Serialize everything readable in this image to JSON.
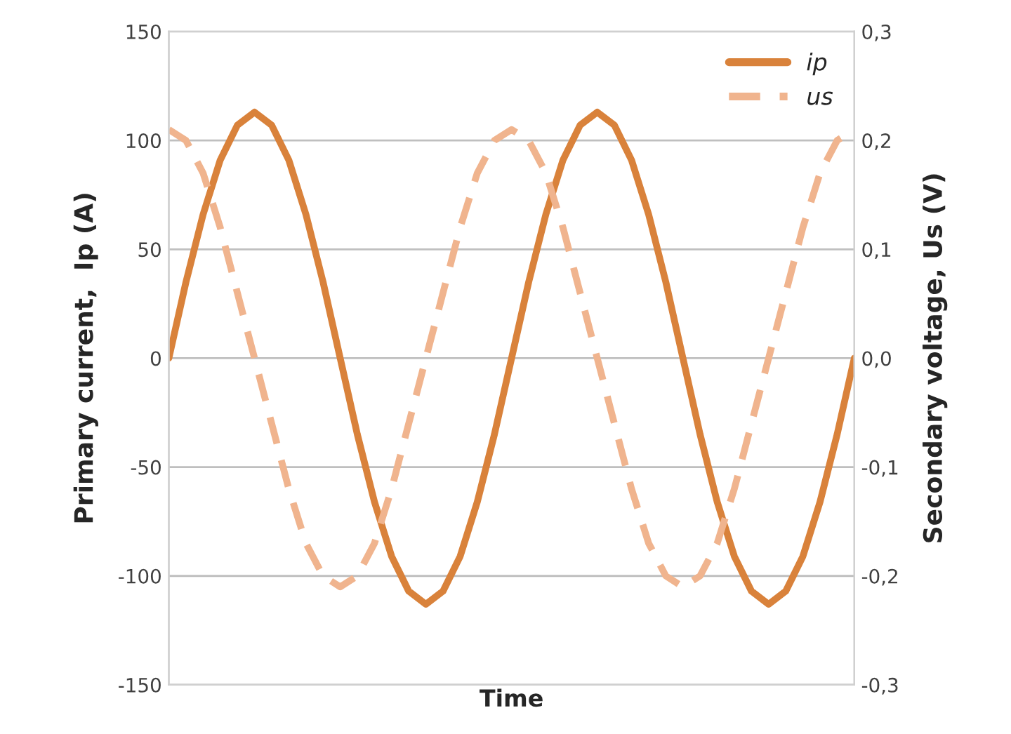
{
  "chart_data": {
    "type": "line",
    "xlabel": "Time",
    "ylabel": "Primary current,  Ip (A)",
    "y2label": "Secondary voltage, Us (V)",
    "categories": [
      null,
      null,
      null,
      null,
      null,
      null,
      null,
      null,
      null,
      null,
      null,
      null,
      null,
      null,
      null,
      null,
      null,
      null,
      null,
      null,
      null,
      null,
      null,
      null,
      null,
      null,
      null,
      null,
      null,
      null,
      null,
      null,
      null,
      null,
      null,
      null,
      null,
      null,
      null,
      null,
      null
    ],
    "series": [
      {
        "name": "ip",
        "color": "#d9823b",
        "line_style": "solid",
        "values": [
          0,
          35,
          66,
          91,
          107,
          113,
          107,
          91,
          66,
          35,
          0,
          -35,
          -66,
          -91,
          -107,
          -113,
          -107,
          -91,
          -66,
          -35,
          0,
          35,
          66,
          91,
          107,
          113,
          107,
          91,
          66,
          35,
          0,
          -35,
          -66,
          -91,
          -107,
          -113,
          -107,
          -91,
          -66,
          -35,
          0
        ]
      },
      {
        "name": "us",
        "color": "#f0b48e",
        "line_style": "dashed",
        "axis": "y2",
        "values": [
          0.21,
          0.2,
          0.17,
          0.12,
          0.06,
          0,
          -0.06,
          -0.12,
          -0.17,
          -0.2,
          -0.21,
          -0.2,
          -0.17,
          -0.12,
          -0.06,
          0,
          0.06,
          0.12,
          0.17,
          0.2,
          0.21,
          0.2,
          0.17,
          0.12,
          0.06,
          0,
          -0.06,
          -0.12,
          -0.17,
          -0.2,
          -0.21,
          -0.2,
          -0.17,
          -0.12,
          -0.06,
          0,
          0.06,
          0.12,
          0.17,
          0.2,
          0.21
        ]
      }
    ],
    "ylim": [
      -150,
      150
    ],
    "yticks": [
      -150,
      -100,
      -50,
      0,
      50,
      100,
      150
    ],
    "y2lim": [
      -0.3,
      0.3
    ],
    "y2ticks": [
      {
        "value": -0.3,
        "label": "-0,3"
      },
      {
        "value": -0.2,
        "label": "-0,2"
      },
      {
        "value": -0.1,
        "label": "-0,1"
      },
      {
        "value": 0,
        "label": "0,0"
      },
      {
        "value": 0.1,
        "label": "0,1"
      },
      {
        "value": 0.2,
        "label": "0,2"
      },
      {
        "value": 0.3,
        "label": "0,3"
      }
    ],
    "grid": "y",
    "legend": "top right",
    "tick_labels": "y"
  }
}
